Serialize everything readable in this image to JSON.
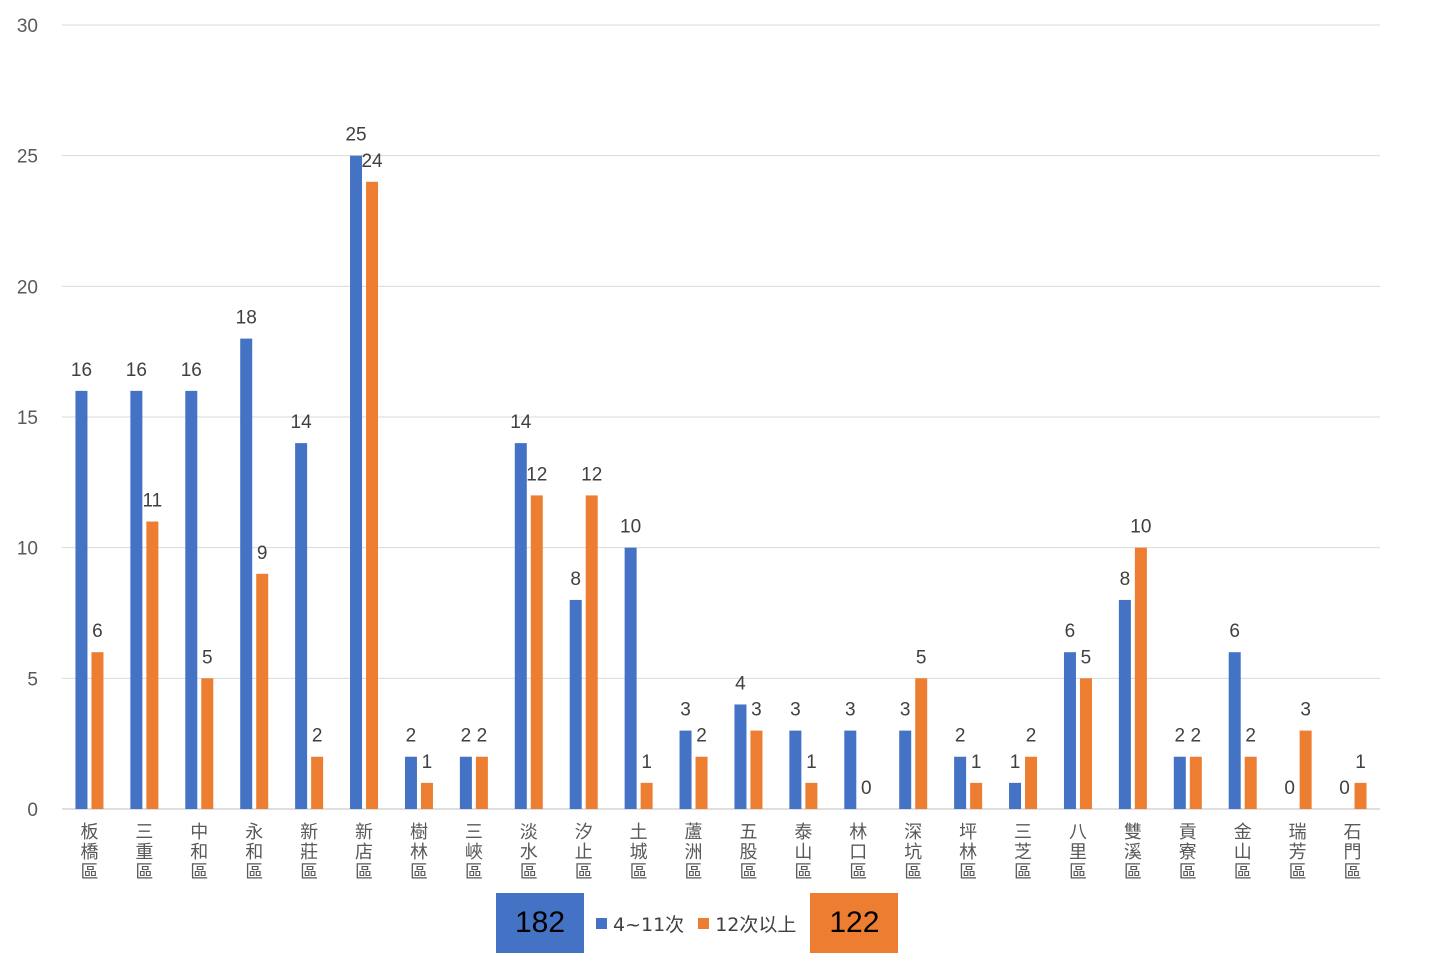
{
  "chart_data": {
    "type": "bar",
    "categories": [
      "板橋區",
      "三重區",
      "中和區",
      "永和區",
      "新莊區",
      "新店區",
      "樹林區",
      "三峽區",
      "淡水區",
      "汐止區",
      "土城區",
      "蘆洲區",
      "五股區",
      "泰山區",
      "林口區",
      "深坑區",
      "坪林區",
      "三芝區",
      "八里區",
      "雙溪區",
      "貢寮區",
      "金山區",
      "瑞芳區",
      "石門區"
    ],
    "series": [
      {
        "name": "4~11次",
        "color": "#4472C4",
        "values": [
          16,
          16,
          16,
          18,
          14,
          25,
          2,
          2,
          14,
          8,
          10,
          3,
          4,
          3,
          3,
          3,
          2,
          1,
          6,
          8,
          2,
          6,
          0,
          0
        ]
      },
      {
        "name": "12次以上",
        "color": "#ED7D31",
        "values": [
          6,
          11,
          5,
          9,
          2,
          24,
          1,
          2,
          12,
          12,
          1,
          2,
          3,
          1,
          0,
          5,
          1,
          2,
          5,
          10,
          2,
          2,
          3,
          1
        ]
      }
    ],
    "ylim": [
      0,
      30
    ],
    "yticks": [
      0,
      5,
      10,
      15,
      20,
      25,
      30
    ],
    "grid": true,
    "legend_position": "bottom",
    "title": "",
    "xlabel": "",
    "ylabel": ""
  },
  "legend": {
    "total_series1": "182",
    "total_series2": "122",
    "series1_label": "4~11次",
    "series2_label": "12次以上"
  }
}
